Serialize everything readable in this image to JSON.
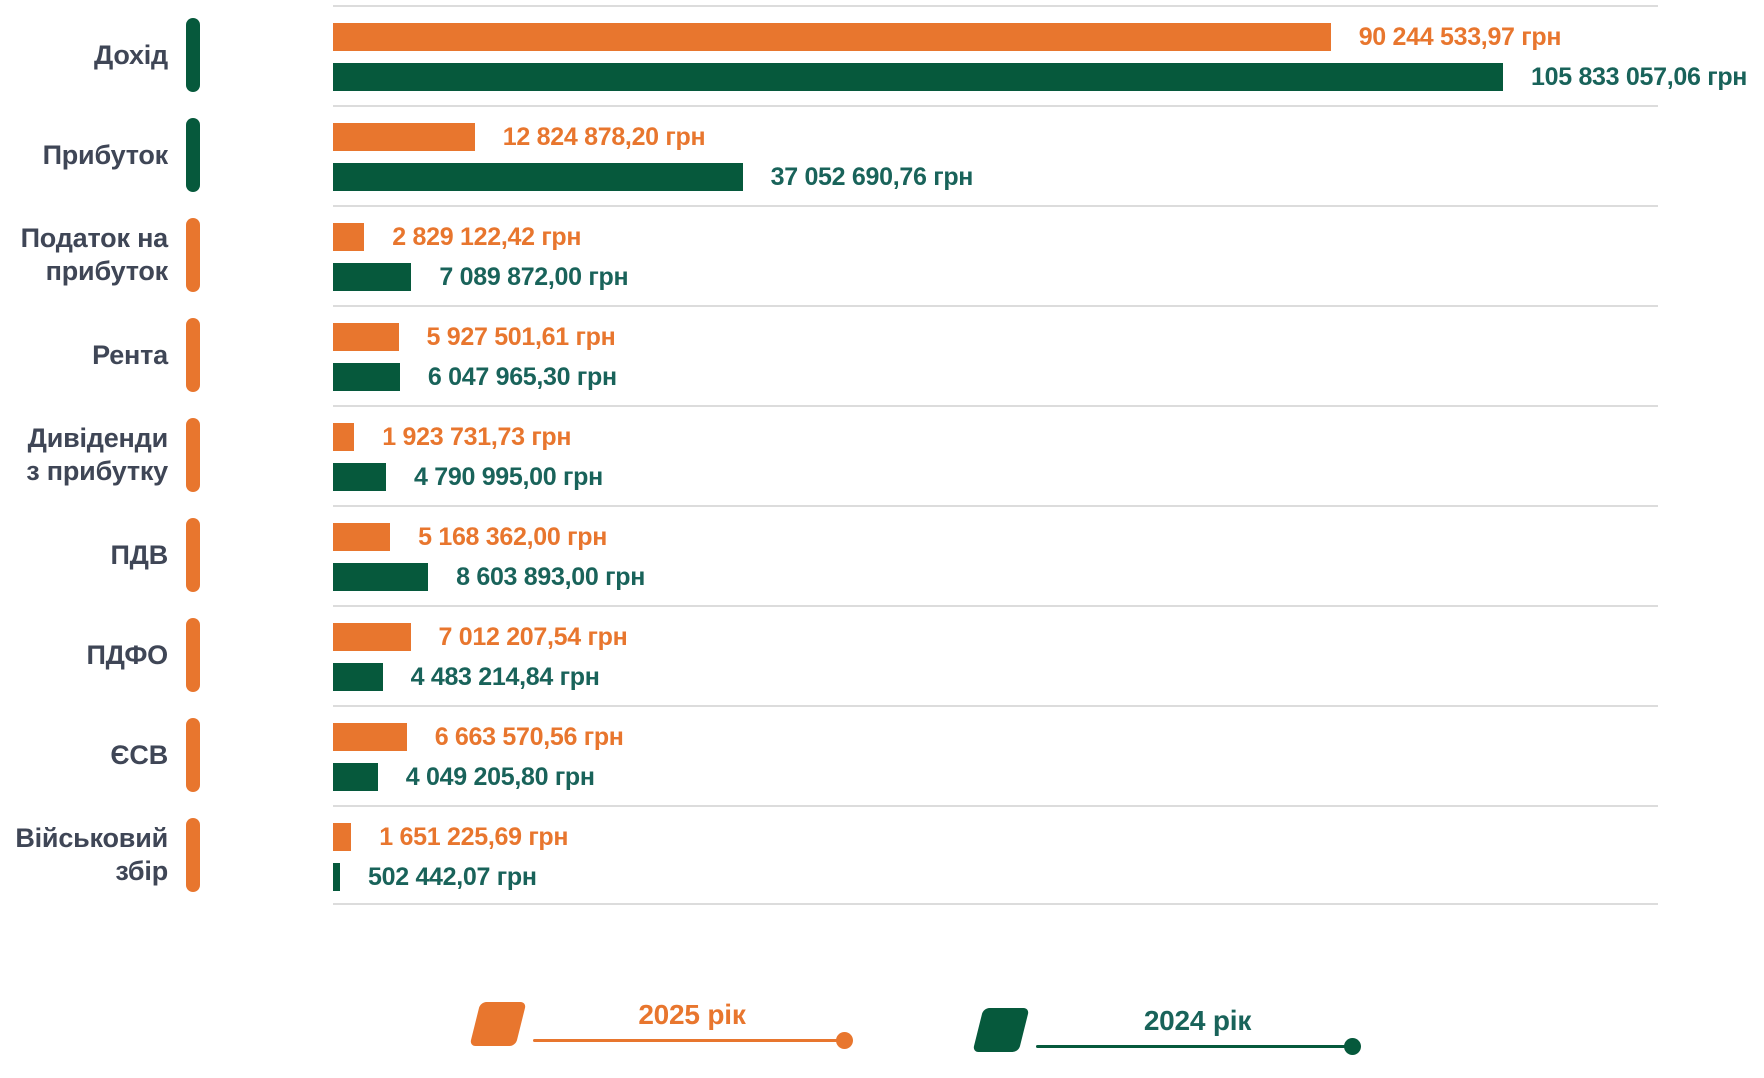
{
  "chart_data": {
    "type": "bar",
    "orientation": "horizontal",
    "title": "",
    "unit": "грн",
    "value_axis_max": 105833057.06,
    "grid": "row-separators",
    "legend_position": "bottom",
    "categories": [
      "Дохід",
      "Прибуток",
      "Податок на прибуток",
      "Рента",
      "Дивіденди з прибутку",
      "ПДВ",
      "ПДФО",
      "ЄСВ",
      "Військовий збір"
    ],
    "category_display_lines": [
      [
        "Дохід"
      ],
      [
        "Прибуток"
      ],
      [
        "Податок на",
        "прибуток"
      ],
      [
        "Рента"
      ],
      [
        "Дивіденди",
        "з прибутку"
      ],
      [
        "ПДВ"
      ],
      [
        "ПДФО"
      ],
      [
        "ЄСВ"
      ],
      [
        "Військовий",
        "збір"
      ]
    ],
    "pill_colors": [
      "green",
      "green",
      "orange",
      "orange",
      "orange",
      "orange",
      "orange",
      "orange",
      "orange"
    ],
    "series": [
      {
        "name": "2025 рік",
        "color_key": "orange",
        "values": [
          90244533.97,
          12824878.2,
          2829122.42,
          5927501.61,
          1923731.73,
          5168362.0,
          7012207.54,
          6663570.56,
          1651225.69
        ],
        "display_labels": [
          "90 244 533,97 грн",
          "12 824 878,20 грн",
          "2 829 122,42 грн",
          "5 927 501,61 грн",
          "1 923 731,73 грн",
          "5 168 362,00 грн",
          "7 012 207,54 грн",
          "6 663 570,56 грн",
          "1 651 225,69 грн"
        ]
      },
      {
        "name": "2024 рік",
        "color_key": "green",
        "values": [
          105833057.06,
          37052690.76,
          7089872.0,
          6047965.3,
          4790995.0,
          8603893.0,
          4483214.84,
          4049205.8,
          502442.07
        ],
        "display_labels": [
          "105 833 057,06 грн",
          "37 052 690,76 грн",
          "7 089 872,00 грн",
          "6 047 965,30 грн",
          "4 790 995,00 грн",
          "8 603 893,00 грн",
          "4 483 214,84 грн",
          "4 049 205,80 грн",
          "502 442,07 грн"
        ]
      }
    ]
  },
  "legend": {
    "items": [
      {
        "label": "2025 рік",
        "color_key": "orange"
      },
      {
        "label": "2024 рік",
        "color_key": "green"
      }
    ]
  },
  "colors": {
    "orange": "#E8762E",
    "green": "#06593C",
    "green_text": "#19635A",
    "category_text": "#3F4656",
    "separator": "#DCDCDC",
    "background": "#FFFFFF"
  }
}
